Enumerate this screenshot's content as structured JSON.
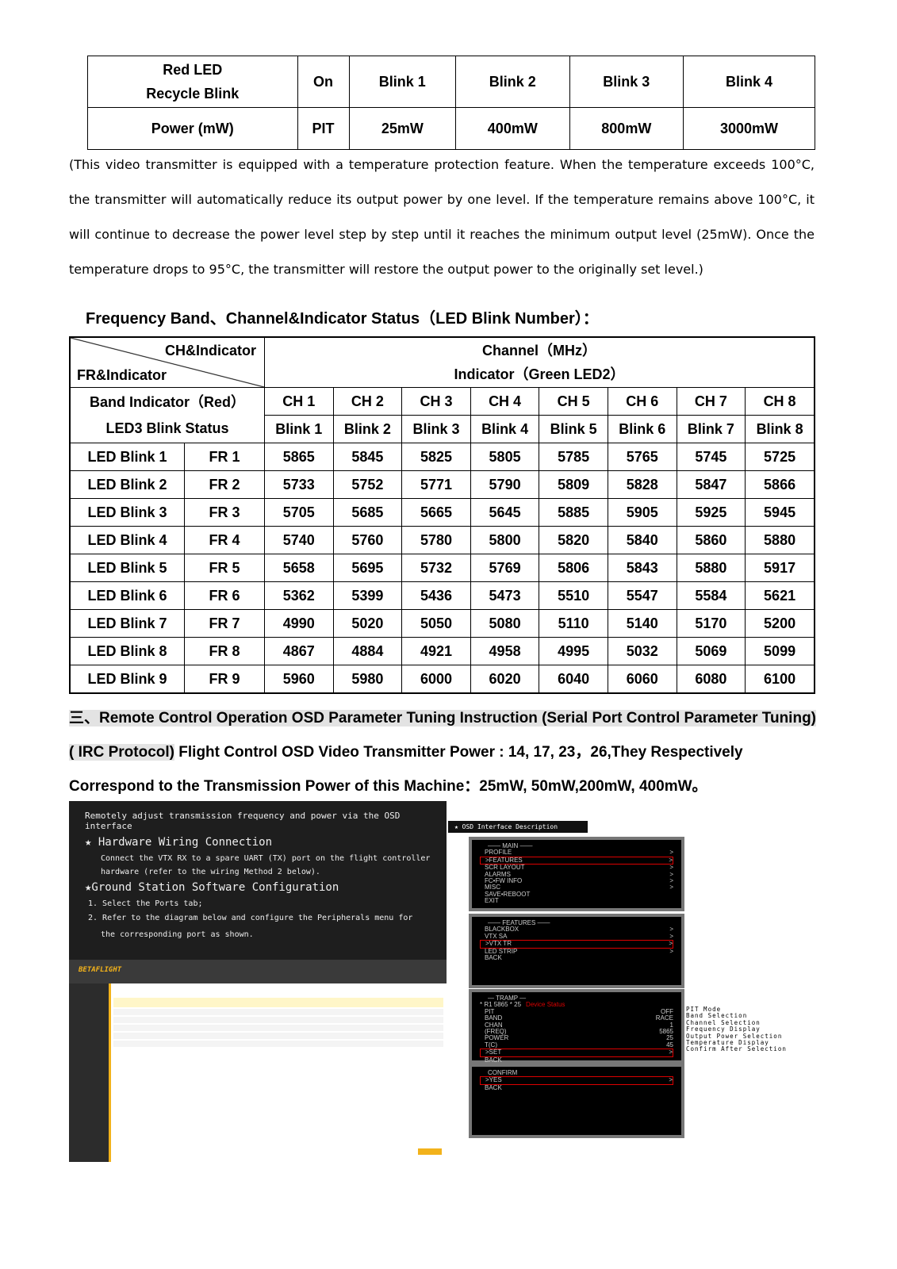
{
  "power_table": {
    "rows": [
      [
        "Red LED\nRecycle Blink",
        "On",
        "Blink 1",
        "Blink 2",
        "Blink 3",
        "Blink 4"
      ],
      [
        "Power (mW)",
        "PIT",
        "25mW",
        "400mW",
        "800mW",
        "3000mW"
      ]
    ]
  },
  "paragraph": "(This video transmitter is equipped with a temperature protection feature. When the temperature exceeds 100°C, the transmitter will automatically reduce its output power by one level. If the temperature remains above 100°C, it will continue to decrease the power level step by step until it reaches the minimum output level (25mW). Once the temperature drops to 95°C, the transmitter will restore the output power to the originally set level.)",
  "freq_heading": "Frequency Band、Channel&Indicator Status（LED Blink Number）：",
  "freq_table": {
    "corner_top": "CH&Indicator",
    "corner_bottom": "FR&Indicator",
    "channel_title": "Channel（MHz）",
    "indicator_title": "Indicator（Green LED2）",
    "band_label_1": "Band Indicator（Red）",
    "band_label_2": "LED3 Blink Status",
    "channels": [
      "CH 1",
      "CH 2",
      "CH 3",
      "CH 4",
      "CH 5",
      "CH 6",
      "CH 7",
      "CH 8"
    ],
    "blinks": [
      "Blink 1",
      "Blink 2",
      "Blink 3",
      "Blink 4",
      "Blink 5",
      "Blink 6",
      "Blink 7",
      "Blink 8"
    ],
    "rows": [
      {
        "led": "LED Blink 1",
        "fr": "FR 1",
        "v": [
          "5865",
          "5845",
          "5825",
          "5805",
          "5785",
          "5765",
          "5745",
          "5725"
        ]
      },
      {
        "led": "LED Blink 2",
        "fr": "FR 2",
        "v": [
          "5733",
          "5752",
          "5771",
          "5790",
          "5809",
          "5828",
          "5847",
          "5866"
        ]
      },
      {
        "led": "LED Blink 3",
        "fr": "FR 3",
        "v": [
          "5705",
          "5685",
          "5665",
          "5645",
          "5885",
          "5905",
          "5925",
          "5945"
        ]
      },
      {
        "led": "LED Blink 4",
        "fr": "FR 4",
        "v": [
          "5740",
          "5760",
          "5780",
          "5800",
          "5820",
          "5840",
          "5860",
          "5880"
        ]
      },
      {
        "led": "LED Blink 5",
        "fr": "FR 5",
        "v": [
          "5658",
          "5695",
          "5732",
          "5769",
          "5806",
          "5843",
          "5880",
          "5917"
        ]
      },
      {
        "led": "LED Blink 6",
        "fr": "FR 6",
        "v": [
          "5362",
          "5399",
          "5436",
          "5473",
          "5510",
          "5547",
          "5584",
          "5621"
        ]
      },
      {
        "led": "LED Blink 7",
        "fr": "FR 7",
        "v": [
          "4990",
          "5020",
          "5050",
          "5080",
          "5110",
          "5140",
          "5170",
          "5200"
        ]
      },
      {
        "led": "LED Blink 8",
        "fr": "FR 8",
        "v": [
          "4867",
          "4884",
          "4921",
          "4958",
          "4995",
          "5032",
          "5069",
          "5099"
        ]
      },
      {
        "led": "LED Blink 9",
        "fr": "FR 9",
        "v": [
          "5960",
          "5980",
          "6000",
          "6020",
          "6040",
          "6060",
          "6080",
          "6100"
        ]
      }
    ]
  },
  "section": {
    "highlight": "三、Remote Control Operation OSD Parameter Tuning Instruction (Serial Port Control Parameter Tuning) ( IRC Protocol)",
    "rest": " Flight Control OSD Video Transmitter Power : 14, 17, 23，26,They Respectively Correspond to the Transmission Power of this Machine：25mW, 50mW,200mW, 400mW。"
  },
  "instructions": {
    "title": "Remotely adjust transmission frequency and power via the OSD interface",
    "h1": "★ Hardware Wiring Connection",
    "p1a": "Connect the VTX RX to a spare UART (TX) port on the flight controller",
    "p1b": "hardware (refer to the wiring Method 2 below).",
    "h2": "★Ground Station Software Configuration",
    "s1": "1. Select the Ports tab;",
    "s2": "2. Refer to the diagram below and configure the Peripherals menu for",
    "s2b": "the corresponding port as shown.",
    "app": "BETAFLIGHT"
  },
  "osd": {
    "title": "OSD Interface Description",
    "main": {
      "title": "—— MAIN ——",
      "items": [
        [
          "PROFILE",
          ">"
        ],
        [
          ">FEATURES",
          ">"
        ],
        [
          "SCR LAYOUT",
          ">"
        ],
        [
          "ALARMS",
          ">"
        ],
        [
          "FC•FW INFO",
          ">"
        ],
        [
          "MISC",
          ">"
        ],
        [
          "SAVE•REBOOT",
          ""
        ],
        [
          "EXIT",
          ""
        ]
      ]
    },
    "features": {
      "title": "—— FEATURES ——",
      "items": [
        [
          "BLACKBOX",
          ">"
        ],
        [
          "VTX SA",
          ">"
        ],
        [
          ">VTX TR",
          ">"
        ],
        [
          "LED STRIP",
          ">"
        ],
        [
          "BACK",
          ""
        ]
      ]
    },
    "tramp": {
      "title": "— TRAMP —",
      "status": "* R1 5865  *  25",
      "status_label": "Device Status",
      "items": [
        [
          "PIT",
          "OFF"
        ],
        [
          "BAND",
          "RACE"
        ],
        [
          "CHAN",
          "1"
        ],
        [
          "(FREQ)",
          "5865"
        ],
        [
          "POWER",
          "25"
        ],
        [
          "T(C)",
          "45"
        ],
        [
          ">SET",
          ">"
        ],
        [
          "BACK",
          ""
        ]
      ]
    },
    "labels": [
      "PIT Mode",
      "Band Selection",
      "Channel Selection",
      "Frequency Display",
      "Output Power Selection",
      "Temperature Display",
      "Confirm After Selection"
    ],
    "confirm": {
      "title": "CONFIRM",
      "items": [
        [
          ">YES",
          ">"
        ],
        [
          "BACK",
          ""
        ]
      ]
    }
  }
}
